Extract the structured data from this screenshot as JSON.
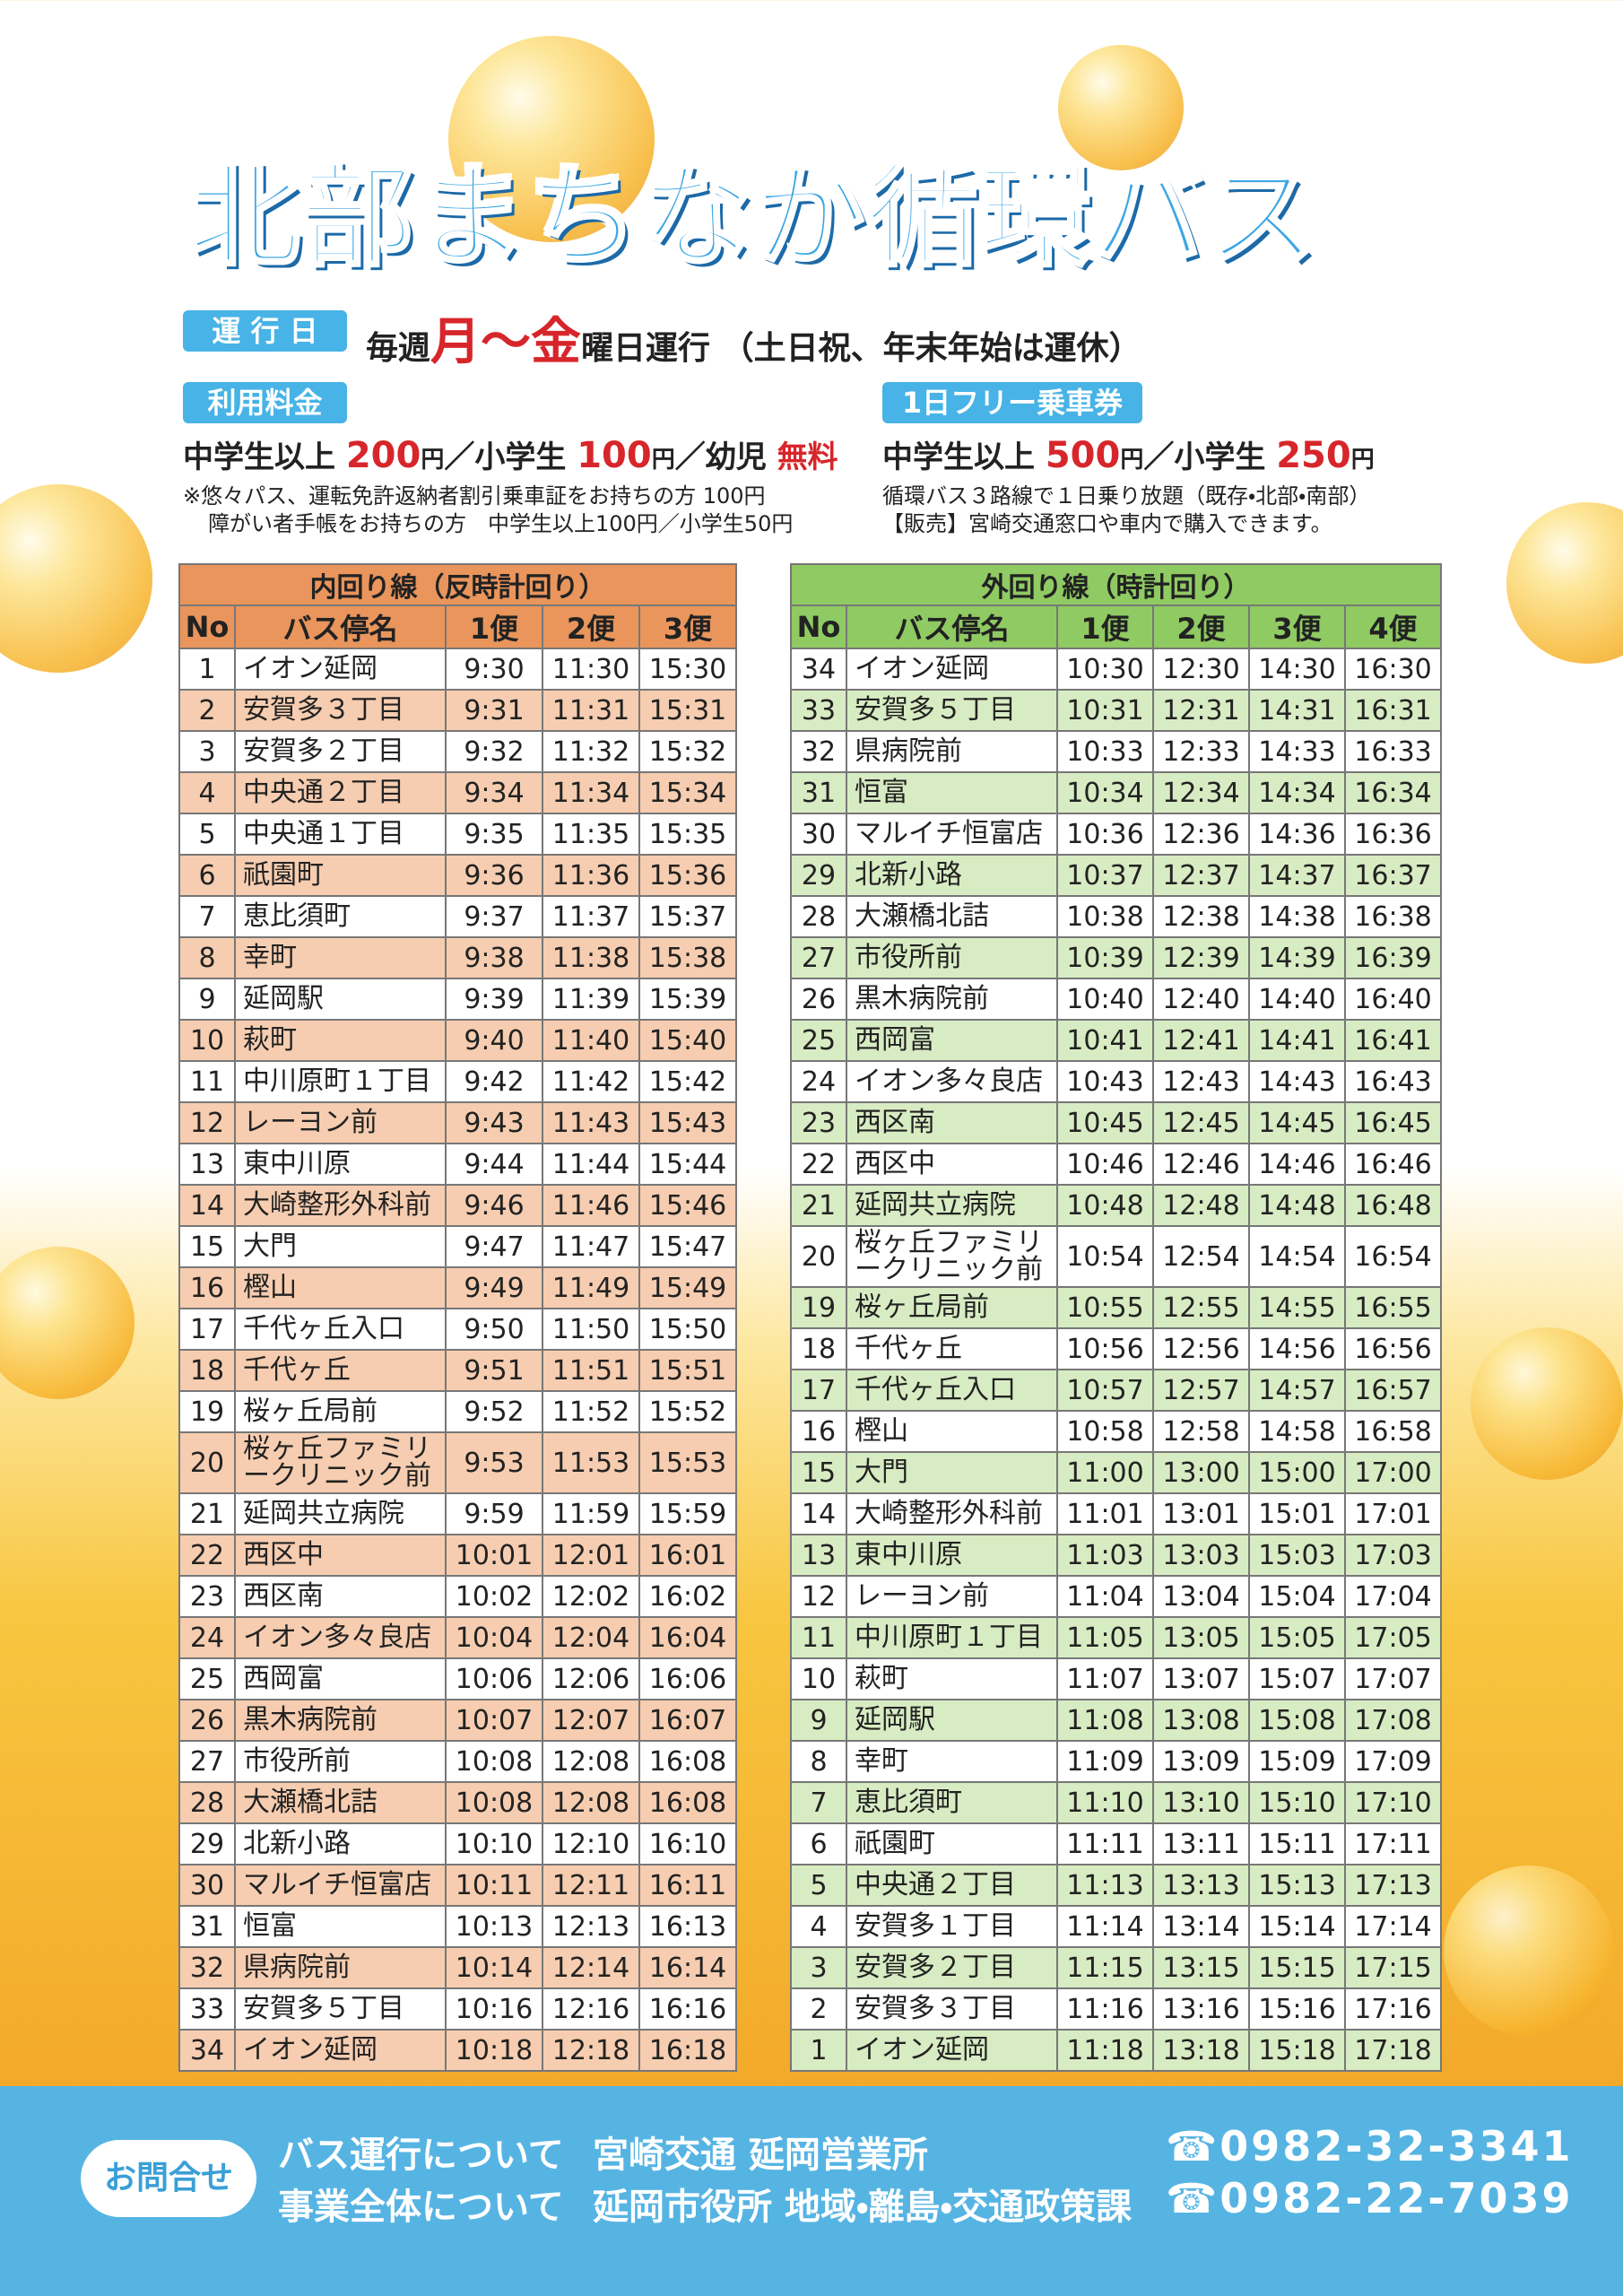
{
  "header": {
    "title": "北部まちなか循環バス",
    "operation_badge": "運 行 日",
    "operation": [
      "毎週",
      "月〜金",
      "曜日運行",
      "（土日祝、年末年始は運休）"
    ]
  },
  "fare": {
    "label": "利用料金",
    "line": [
      "中学生以上 ",
      "200",
      "円",
      "／小学生 ",
      "100",
      "円",
      "／幼児 ",
      "無料"
    ],
    "notes": [
      "※悠々パス、運転免許返納者割引乗車証をお持ちの方 100円",
      "障がい者手帳をお持ちの方　中学生以上100円／小学生50円"
    ]
  },
  "day_pass": {
    "label": "1日フリー乗車券",
    "line": [
      "中学生以上 ",
      "500",
      "円",
      "／小学生 ",
      "250",
      "円"
    ],
    "notes": [
      "循環バス３路線で１日乗り放題（既存・北部・南部）",
      "【販売】宮崎交通窓口や車内で購入できます。"
    ]
  },
  "inner_loop": {
    "title": "内回り線（反時計回り）",
    "columns": [
      "No",
      "バス停名",
      "1便",
      "2便",
      "3便"
    ],
    "rows": [
      [
        "1",
        "イオン延岡",
        "9:30",
        "11:30",
        "15:30"
      ],
      [
        "2",
        "安賀多３丁目",
        "9:31",
        "11:31",
        "15:31"
      ],
      [
        "3",
        "安賀多２丁目",
        "9:32",
        "11:32",
        "15:32"
      ],
      [
        "4",
        "中央通２丁目",
        "9:34",
        "11:34",
        "15:34"
      ],
      [
        "5",
        "中央通１丁目",
        "9:35",
        "11:35",
        "15:35"
      ],
      [
        "6",
        "祇園町",
        "9:36",
        "11:36",
        "15:36"
      ],
      [
        "7",
        "恵比須町",
        "9:37",
        "11:37",
        "15:37"
      ],
      [
        "8",
        "幸町",
        "9:38",
        "11:38",
        "15:38"
      ],
      [
        "9",
        "延岡駅",
        "9:39",
        "11:39",
        "15:39"
      ],
      [
        "10",
        "萩町",
        "9:40",
        "11:40",
        "15:40"
      ],
      [
        "11",
        "中川原町１丁目",
        "9:42",
        "11:42",
        "15:42"
      ],
      [
        "12",
        "レーヨン前",
        "9:43",
        "11:43",
        "15:43"
      ],
      [
        "13",
        "東中川原",
        "9:44",
        "11:44",
        "15:44"
      ],
      [
        "14",
        "大崎整形外科前",
        "9:46",
        "11:46",
        "15:46"
      ],
      [
        "15",
        "大門",
        "9:47",
        "11:47",
        "15:47"
      ],
      [
        "16",
        "樫山",
        "9:49",
        "11:49",
        "15:49"
      ],
      [
        "17",
        "千代ヶ丘入口",
        "9:50",
        "11:50",
        "15:50"
      ],
      [
        "18",
        "千代ヶ丘",
        "9:51",
        "11:51",
        "15:51"
      ],
      [
        "19",
        "桜ヶ丘局前",
        "9:52",
        "11:52",
        "15:52"
      ],
      [
        "20",
        "桜ヶ丘ファミリークリニック前",
        "9:53",
        "11:53",
        "15:53"
      ],
      [
        "21",
        "延岡共立病院",
        "9:59",
        "11:59",
        "15:59"
      ],
      [
        "22",
        "西区中",
        "10:01",
        "12:01",
        "16:01"
      ],
      [
        "23",
        "西区南",
        "10:02",
        "12:02",
        "16:02"
      ],
      [
        "24",
        "イオン多々良店",
        "10:04",
        "12:04",
        "16:04"
      ],
      [
        "25",
        "西岡富",
        "10:06",
        "12:06",
        "16:06"
      ],
      [
        "26",
        "黒木病院前",
        "10:07",
        "12:07",
        "16:07"
      ],
      [
        "27",
        "市役所前",
        "10:08",
        "12:08",
        "16:08"
      ],
      [
        "28",
        "大瀬橋北詰",
        "10:08",
        "12:08",
        "16:08"
      ],
      [
        "29",
        "北新小路",
        "10:10",
        "12:10",
        "16:10"
      ],
      [
        "30",
        "マルイチ恒富店",
        "10:11",
        "12:11",
        "16:11"
      ],
      [
        "31",
        "恒富",
        "10:13",
        "12:13",
        "16:13"
      ],
      [
        "32",
        "県病院前",
        "10:14",
        "12:14",
        "16:14"
      ],
      [
        "33",
        "安賀多５丁目",
        "10:16",
        "12:16",
        "16:16"
      ],
      [
        "34",
        "イオン延岡",
        "10:18",
        "12:18",
        "16:18"
      ]
    ]
  },
  "outer_loop": {
    "title": "外回り線（時計回り）",
    "columns": [
      "No",
      "バス停名",
      "1便",
      "2便",
      "3便",
      "4便"
    ],
    "rows": [
      [
        "34",
        "イオン延岡",
        "10:30",
        "12:30",
        "14:30",
        "16:30"
      ],
      [
        "33",
        "安賀多５丁目",
        "10:31",
        "12:31",
        "14:31",
        "16:31"
      ],
      [
        "32",
        "県病院前",
        "10:33",
        "12:33",
        "14:33",
        "16:33"
      ],
      [
        "31",
        "恒富",
        "10:34",
        "12:34",
        "14:34",
        "16:34"
      ],
      [
        "30",
        "マルイチ恒富店",
        "10:36",
        "12:36",
        "14:36",
        "16:36"
      ],
      [
        "29",
        "北新小路",
        "10:37",
        "12:37",
        "14:37",
        "16:37"
      ],
      [
        "28",
        "大瀬橋北詰",
        "10:38",
        "12:38",
        "14:38",
        "16:38"
      ],
      [
        "27",
        "市役所前",
        "10:39",
        "12:39",
        "14:39",
        "16:39"
      ],
      [
        "26",
        "黒木病院前",
        "10:40",
        "12:40",
        "14:40",
        "16:40"
      ],
      [
        "25",
        "西岡富",
        "10:41",
        "12:41",
        "14:41",
        "16:41"
      ],
      [
        "24",
        "イオン多々良店",
        "10:43",
        "12:43",
        "14:43",
        "16:43"
      ],
      [
        "23",
        "西区南",
        "10:45",
        "12:45",
        "14:45",
        "16:45"
      ],
      [
        "22",
        "西区中",
        "10:46",
        "12:46",
        "14:46",
        "16:46"
      ],
      [
        "21",
        "延岡共立病院",
        "10:48",
        "12:48",
        "14:48",
        "16:48"
      ],
      [
        "20",
        "桜ヶ丘ファミリークリニック前",
        "10:54",
        "12:54",
        "14:54",
        "16:54"
      ],
      [
        "19",
        "桜ヶ丘局前",
        "10:55",
        "12:55",
        "14:55",
        "16:55"
      ],
      [
        "18",
        "千代ヶ丘",
        "10:56",
        "12:56",
        "14:56",
        "16:56"
      ],
      [
        "17",
        "千代ヶ丘入口",
        "10:57",
        "12:57",
        "14:57",
        "16:57"
      ],
      [
        "16",
        "樫山",
        "10:58",
        "12:58",
        "14:58",
        "16:58"
      ],
      [
        "15",
        "大門",
        "11:00",
        "13:00",
        "15:00",
        "17:00"
      ],
      [
        "14",
        "大崎整形外科前",
        "11:01",
        "13:01",
        "15:01",
        "17:01"
      ],
      [
        "13",
        "東中川原",
        "11:03",
        "13:03",
        "15:03",
        "17:03"
      ],
      [
        "12",
        "レーヨン前",
        "11:04",
        "13:04",
        "15:04",
        "17:04"
      ],
      [
        "11",
        "中川原町１丁目",
        "11:05",
        "13:05",
        "15:05",
        "17:05"
      ],
      [
        "10",
        "萩町",
        "11:07",
        "13:07",
        "15:07",
        "17:07"
      ],
      [
        "9",
        "延岡駅",
        "11:08",
        "13:08",
        "15:08",
        "17:08"
      ],
      [
        "8",
        "幸町",
        "11:09",
        "13:09",
        "15:09",
        "17:09"
      ],
      [
        "7",
        "恵比須町",
        "11:10",
        "13:10",
        "15:10",
        "17:10"
      ],
      [
        "6",
        "祇園町",
        "11:11",
        "13:11",
        "15:11",
        "17:11"
      ],
      [
        "5",
        "中央通２丁目",
        "11:13",
        "13:13",
        "15:13",
        "17:13"
      ],
      [
        "4",
        "安賀多１丁目",
        "11:14",
        "13:14",
        "15:14",
        "17:14"
      ],
      [
        "3",
        "安賀多２丁目",
        "11:15",
        "13:15",
        "15:15",
        "17:15"
      ],
      [
        "2",
        "安賀多３丁目",
        "11:16",
        "13:16",
        "15:16",
        "17:16"
      ],
      [
        "1",
        "イオン延岡",
        "11:18",
        "13:18",
        "15:18",
        "17:18"
      ]
    ]
  },
  "contact": {
    "label": "お問合せ",
    "lines": [
      [
        "バス運行について",
        "宮崎交通 延岡営業所",
        "☎0982-32-3341"
      ],
      [
        "事業全体について",
        "延岡市役所 地域・離島・交通政策課",
        "☎0982-22-7039"
      ]
    ]
  }
}
